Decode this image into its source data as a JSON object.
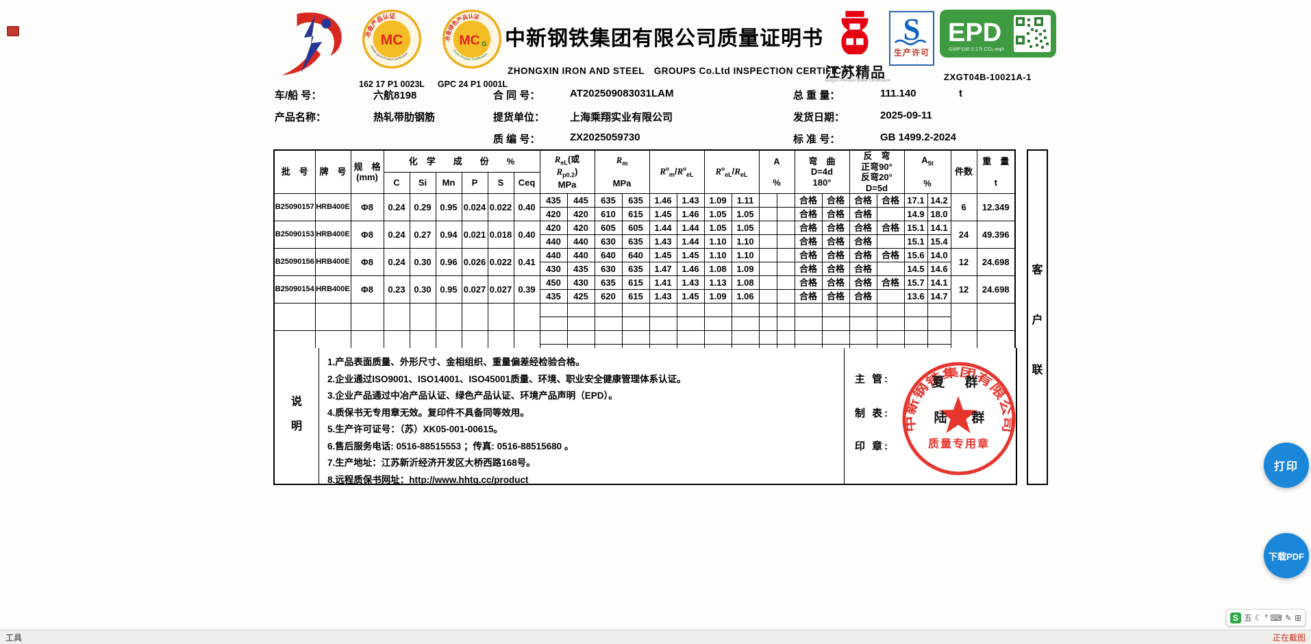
{
  "page": {
    "statusbar_left": "工具",
    "statusbar_right": "正在截图",
    "print_button": "打印",
    "download_button": "下载PDF",
    "colors": {
      "accent_blue": "#1b87d9",
      "stamp_red": "#e3241b",
      "epd_green": "#3f9b41",
      "badge_gold": "#f0b626",
      "brand_red": "#d8281e",
      "brand_blue": "#283593",
      "status_red": "#cc2a1d"
    }
  },
  "header": {
    "title": "中新钢铁集团有限公司质量证明书",
    "subtitle": "ZHONGXIN IRON AND STEEL　GROUPS Co.Ltd INSPECTION CERTIFICAT",
    "mc_code": "162 17 P1 0023L",
    "mcg_code": "GPC 24 P1 0001L",
    "epd_serial": "ZXGT04B-10021A-1",
    "badges": {
      "mc": {
        "text": "MC",
        "ring_top": "冶金产品认证",
        "ring_bottom": "Metallurgical Product Certification"
      },
      "mcg": {
        "text": "MC",
        "sub": "G",
        "ring_top": "冶金绿色产品认证",
        "ring_bottom": "Green Product Certification"
      },
      "premium": {
        "label": "江苏精品",
        "sub": "Jiangsu Premium Brand Certification"
      },
      "license": {
        "letter": "S",
        "label": "生产许可"
      },
      "epd": {
        "label": "EPD",
        "gwp": "GWP100  2.17t CO₂-eq/t"
      }
    }
  },
  "info": {
    "r1c1_label": "车/船 号：",
    "r1c1_value": "六航8198",
    "r1c2_label": "合 同 号：",
    "r1c2_value": "AT202509083031LAM",
    "r1c3_label": "总 重 量：",
    "r1c3_value": "111.140",
    "r1c3_unit": "t",
    "r2c1_label": "产品名称：",
    "r2c1_value": "热轧带肋钢筋",
    "r2c2_label": "提货单位：",
    "r2c2_value": "上海乘翔实业有限公司",
    "r2c3_label": "发货日期：",
    "r2c3_value": "2025-09-11",
    "r3c2_label": "质 编 号：",
    "r3c2_value": "ZX2025059730",
    "r3c3_label": "标 准 号：",
    "r3c3_value": "GB 1499.2-2024"
  },
  "table": {
    "headers": {
      "batch": "批　号",
      "grade": "牌　号",
      "size": "规　格<br>(mm)",
      "chem_group": "化　学　　成　　份　　%",
      "c": "C",
      "si": "Si",
      "mn": "Mn",
      "p": "P",
      "s": "S",
      "ceq": "Ceq",
      "rel": "<i>R</i><sub>eL</sub>(或<br><i>R</i><sub>p0.2</sub>)<br>MPa",
      "rm": "<i>R</i><sub>m</sub><br><br>MPa",
      "rm_rel": "<i>R</i><sup>o</sup><sub>m</sub>/<i>R</i><sup>o</sup><sub>eL</sub>",
      "rel_rel": "<i>R</i><sup>o</sup><sub>eL</sub>/<i>R</i><sub>eL</sub>",
      "a": "A<br><br>%",
      "bend": "弯　曲<br>D=4d<br>180°",
      "rebend": "反　弯<br>正弯90°<br>反弯20°<br>D=5d",
      "a5t": "A<sub>5t</sub><br><br>%",
      "pieces": "件数",
      "weight": "重　量<br><br>t"
    },
    "batches": [
      {
        "batch": "B25090157",
        "grade": "HRB400E",
        "size": "Φ8",
        "chem": [
          "0.24",
          "0.29",
          "0.95",
          "0.024",
          "0.022",
          "0.40"
        ],
        "rows": [
          {
            "rel": [
              "435",
              "445"
            ],
            "rm": [
              "635",
              "635"
            ],
            "rm_rel": [
              "1.46",
              "1.43"
            ],
            "rel_rel": [
              "1.09",
              "1.11"
            ],
            "a": [
              "",
              ""
            ],
            "bend": [
              "合格",
              "合格"
            ],
            "rebend": [
              "合格",
              "合格"
            ],
            "a5t": [
              "17.1",
              "14.2"
            ]
          },
          {
            "rel": [
              "420",
              "420"
            ],
            "rm": [
              "610",
              "615"
            ],
            "rm_rel": [
              "1.45",
              "1.46"
            ],
            "rel_rel": [
              "1.05",
              "1.05"
            ],
            "a": [
              "",
              ""
            ],
            "bend": [
              "合格",
              "合格"
            ],
            "rebend": [
              "合格",
              ""
            ],
            "a5t": [
              "14.9",
              "18.0"
            ]
          }
        ],
        "pieces": "6",
        "weight": "12.349"
      },
      {
        "batch": "B25090153",
        "grade": "HRB400E",
        "size": "Φ8",
        "chem": [
          "0.24",
          "0.27",
          "0.94",
          "0.021",
          "0.018",
          "0.40"
        ],
        "rows": [
          {
            "rel": [
              "420",
              "420"
            ],
            "rm": [
              "605",
              "605"
            ],
            "rm_rel": [
              "1.44",
              "1.44"
            ],
            "rel_rel": [
              "1.05",
              "1.05"
            ],
            "a": [
              "",
              ""
            ],
            "bend": [
              "合格",
              "合格"
            ],
            "rebend": [
              "合格",
              "合格"
            ],
            "a5t": [
              "15.1",
              "14.1"
            ]
          },
          {
            "rel": [
              "440",
              "440"
            ],
            "rm": [
              "630",
              "635"
            ],
            "rm_rel": [
              "1.43",
              "1.44"
            ],
            "rel_rel": [
              "1.10",
              "1.10"
            ],
            "a": [
              "",
              ""
            ],
            "bend": [
              "合格",
              "合格"
            ],
            "rebend": [
              "合格",
              ""
            ],
            "a5t": [
              "15.1",
              "15.4"
            ]
          }
        ],
        "pieces": "24",
        "weight": "49.396"
      },
      {
        "batch": "B25090156",
        "grade": "HRB400E",
        "size": "Φ8",
        "chem": [
          "0.24",
          "0.30",
          "0.96",
          "0.026",
          "0.022",
          "0.41"
        ],
        "rows": [
          {
            "rel": [
              "440",
              "440"
            ],
            "rm": [
              "640",
              "640"
            ],
            "rm_rel": [
              "1.45",
              "1.45"
            ],
            "rel_rel": [
              "1.10",
              "1.10"
            ],
            "a": [
              "",
              ""
            ],
            "bend": [
              "合格",
              "合格"
            ],
            "rebend": [
              "合格",
              "合格"
            ],
            "a5t": [
              "15.6",
              "14.0"
            ]
          },
          {
            "rel": [
              "430",
              "435"
            ],
            "rm": [
              "630",
              "635"
            ],
            "rm_rel": [
              "1.47",
              "1.46"
            ],
            "rel_rel": [
              "1.08",
              "1.09"
            ],
            "a": [
              "",
              ""
            ],
            "bend": [
              "合格",
              "合格"
            ],
            "rebend": [
              "合格",
              ""
            ],
            "a5t": [
              "14.5",
              "14.6"
            ]
          }
        ],
        "pieces": "12",
        "weight": "24.698"
      },
      {
        "batch": "B25090154",
        "grade": "HRB400E",
        "size": "Φ8",
        "chem": [
          "0.23",
          "0.30",
          "0.95",
          "0.027",
          "0.027",
          "0.39"
        ],
        "rows": [
          {
            "rel": [
              "450",
              "430"
            ],
            "rm": [
              "635",
              "615"
            ],
            "rm_rel": [
              "1.41",
              "1.43"
            ],
            "rel_rel": [
              "1.13",
              "1.08"
            ],
            "a": [
              "",
              ""
            ],
            "bend": [
              "合格",
              "合格"
            ],
            "rebend": [
              "合格",
              "合格"
            ],
            "a5t": [
              "15.7",
              "14.1"
            ]
          },
          {
            "rel": [
              "435",
              "425"
            ],
            "rm": [
              "620",
              "615"
            ],
            "rm_rel": [
              "1.43",
              "1.45"
            ],
            "rel_rel": [
              "1.09",
              "1.06"
            ],
            "a": [
              "",
              ""
            ],
            "bend": [
              "合格",
              "合格"
            ],
            "rebend": [
              "合格",
              ""
            ],
            "a5t": [
              "13.6",
              "14.7"
            ]
          }
        ],
        "pieces": "12",
        "weight": "24.698"
      },
      {
        "batch": "",
        "grade": "",
        "size": "",
        "chem": [
          "",
          "",
          "",
          "",
          "",
          ""
        ],
        "rows": [
          {
            "rel": [
              "",
              ""
            ],
            "rm": [
              "",
              ""
            ],
            "rm_rel": [
              "",
              ""
            ],
            "rel_rel": [
              "",
              ""
            ],
            "a": [
              "",
              ""
            ],
            "bend": [
              "",
              ""
            ],
            "rebend": [
              "",
              ""
            ],
            "a5t": [
              "",
              ""
            ]
          },
          {
            "rel": [
              "",
              ""
            ],
            "rm": [
              "",
              ""
            ],
            "rm_rel": [
              "",
              ""
            ],
            "rel_rel": [
              "",
              ""
            ],
            "a": [
              "",
              ""
            ],
            "bend": [
              "",
              ""
            ],
            "rebend": [
              "",
              ""
            ],
            "a5t": [
              "",
              ""
            ]
          }
        ],
        "pieces": "",
        "weight": ""
      },
      {
        "batch": "",
        "grade": "",
        "size": "",
        "chem": [
          "",
          "",
          "",
          "",
          "",
          ""
        ],
        "rows": [
          {
            "rel": [
              "",
              ""
            ],
            "rm": [
              "",
              ""
            ],
            "rm_rel": [
              "",
              ""
            ],
            "rel_rel": [
              "",
              ""
            ],
            "a": [
              "",
              ""
            ],
            "bend": [
              "",
              ""
            ],
            "rebend": [
              "",
              ""
            ],
            "a5t": [
              "",
              ""
            ]
          },
          {
            "rel": [
              "",
              ""
            ],
            "rm": [
              "",
              ""
            ],
            "rm_rel": [
              "",
              ""
            ],
            "rel_rel": [
              "",
              ""
            ],
            "a": [
              "",
              ""
            ],
            "bend": [
              "",
              ""
            ],
            "rebend": [
              "",
              ""
            ],
            "a5t": [
              "",
              ""
            ]
          }
        ],
        "pieces": "",
        "weight": ""
      }
    ]
  },
  "notes": {
    "side_top": "说",
    "side_bottom": "明",
    "lines": [
      "1.产品表面质量、外形尺寸、金相组织、重量偏差经检验合格。",
      "2.企业通过ISO9001、ISO14001、ISO45001质量、环境、职业安全健康管理体系认证。",
      "3.企业产品通过中冶产品认证、绿色产品认证、环境产品声明（EPD）。",
      "4.质保书无专用章无效。复印件不具备同等效用。",
      "5.生产许可证号：（苏）XK05-001-00615。",
      "6.售后服务电话: 0516-88515553 ；传真: 0516-88515680 。",
      "7.生产地址：江苏新沂经济开发区大桥西路168号。",
      "8.远程质保书网址：http://www.hhtg.cc/product"
    ]
  },
  "signature": {
    "supervisor_label": "主  管:",
    "preparer_label": "制  表:",
    "seal_label": "印  章:",
    "stamp": {
      "company": "中新钢铁集团有限公司",
      "banner": "质量专用章",
      "name_top": "夏 群",
      "name_left": "陆",
      "name_right": "群"
    }
  },
  "copy_strip": {
    "c0": "客",
    "c1": "户",
    "c2": "联"
  },
  "ime": {
    "logo": "S",
    "items": [
      "五",
      "☾",
      "❜",
      "⌨",
      "✎",
      "⊞"
    ]
  }
}
